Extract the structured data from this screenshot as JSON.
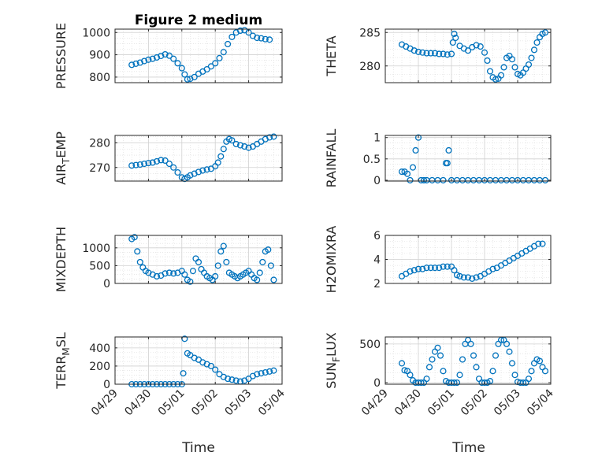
{
  "figure": {
    "title": "Figure 2 medium",
    "xlabel": "Time",
    "marker_color": "#0072bd"
  },
  "chart_data": [
    {
      "type": "scatter",
      "title": "Figure 2 medium",
      "ylabel": "PRESSURE",
      "ylabel_base": "PRESSURE",
      "ylabel_sub": "",
      "ylabel_tail": "",
      "xlabel": "",
      "xlim": [
        "04/29",
        "05/04"
      ],
      "ylim": [
        775,
        1015
      ],
      "yticks": [
        800,
        900,
        1000
      ],
      "xticks": [
        "04/29",
        "04/30",
        "05/01",
        "05/02",
        "05/03",
        "05/04"
      ],
      "grid": true,
      "series": [
        {
          "x": [
            "04/29 12:00",
            "04/29 15:00",
            "04/29 18:00",
            "04/29 21:00",
            "04/30 00:00",
            "04/30 03:00",
            "04/30 06:00",
            "04/30 09:00",
            "04/30 12:00",
            "04/30 15:00",
            "04/30 18:00",
            "04/30 21:00",
            "05/01 00:00",
            "05/01 02:00",
            "05/01 04:00",
            "05/01 06:00",
            "05/01 09:00",
            "05/01 12:00",
            "05/01 15:00",
            "05/01 18:00",
            "05/01 21:00",
            "05/02 00:00",
            "05/02 03:00",
            "05/02 06:00",
            "05/02 09:00",
            "05/02 12:00",
            "05/02 15:00",
            "05/02 18:00",
            "05/02 21:00",
            "05/03 00:00",
            "05/03 03:00",
            "05/03 06:00",
            "05/03 09:00",
            "05/03 12:00",
            "05/03 15:00"
          ],
          "y": [
            855,
            860,
            865,
            872,
            878,
            882,
            888,
            895,
            902,
            896,
            882,
            862,
            840,
            812,
            790,
            792,
            800,
            815,
            825,
            835,
            848,
            862,
            885,
            912,
            948,
            980,
            1000,
            1008,
            1010,
            1000,
            985,
            976,
            974,
            970,
            968
          ]
        }
      ]
    },
    {
      "type": "scatter",
      "ylabel": "THETA",
      "ylabel_base": "THETA",
      "ylabel_sub": "",
      "ylabel_tail": "",
      "xlim": [
        "04/29",
        "05/04"
      ],
      "ylim": [
        277.5,
        285.5
      ],
      "yticks": [
        280,
        285
      ],
      "grid": true,
      "series": [
        {
          "x": [
            "04/29 12:00",
            "04/29 15:00",
            "04/29 18:00",
            "04/29 21:00",
            "04/30 00:00",
            "04/30 03:00",
            "04/30 06:00",
            "04/30 09:00",
            "04/30 12:00",
            "04/30 15:00",
            "04/30 18:00",
            "04/30 21:00",
            "05/01 00:00",
            "05/01 01:00",
            "05/01 02:00",
            "05/01 03:00",
            "05/01 06:00",
            "05/01 09:00",
            "05/01 12:00",
            "05/01 15:00",
            "05/01 18:00",
            "05/01 21:00",
            "05/02 00:00",
            "05/02 02:00",
            "05/02 04:00",
            "05/02 06:00",
            "05/02 08:00",
            "05/02 10:00",
            "05/02 12:00",
            "05/02 14:00",
            "05/02 16:00",
            "05/02 18:00",
            "05/02 20:00",
            "05/02 22:00",
            "05/03 00:00",
            "05/03 02:00",
            "05/03 04:00",
            "05/03 06:00",
            "05/03 08:00",
            "05/03 10:00",
            "05/03 12:00",
            "05/03 14:00",
            "05/03 16:00",
            "05/03 18:00",
            "05/03 20:00"
          ],
          "y": [
            283.2,
            282.9,
            282.6,
            282.3,
            282.1,
            282.0,
            281.9,
            281.9,
            281.9,
            281.8,
            281.8,
            281.7,
            281.8,
            283.5,
            284.8,
            284.2,
            283.0,
            282.6,
            282.3,
            282.8,
            283.1,
            282.9,
            282.0,
            280.8,
            279.2,
            278.3,
            278.0,
            278.1,
            278.6,
            279.8,
            281.2,
            281.5,
            281.0,
            279.8,
            278.8,
            278.6,
            279.0,
            279.6,
            280.2,
            281.2,
            282.4,
            283.5,
            284.3,
            284.8,
            285.0
          ]
        }
      ]
    },
    {
      "type": "scatter",
      "ylabel": "AIR_TEMP",
      "ylabel_base": "AIR",
      "ylabel_sub": "T",
      "ylabel_tail": "EMP",
      "xlim": [
        "04/29",
        "05/04"
      ],
      "ylim": [
        264.5,
        283
      ],
      "yticks": [
        270,
        280
      ],
      "grid": true,
      "series": [
        {
          "x": [
            "04/29 12:00",
            "04/29 15:00",
            "04/29 18:00",
            "04/29 21:00",
            "04/30 00:00",
            "04/30 03:00",
            "04/30 06:00",
            "04/30 09:00",
            "04/30 12:00",
            "04/30 15:00",
            "04/30 18:00",
            "04/30 21:00",
            "05/01 00:00",
            "05/01 02:00",
            "05/01 04:00",
            "05/01 06:00",
            "05/01 09:00",
            "05/01 12:00",
            "05/01 15:00",
            "05/01 18:00",
            "05/01 21:00",
            "05/02 00:00",
            "05/02 02:00",
            "05/02 04:00",
            "05/02 06:00",
            "05/02 08:00",
            "05/02 10:00",
            "05/02 12:00",
            "05/02 15:00",
            "05/02 18:00",
            "05/02 21:00",
            "05/03 00:00",
            "05/03 03:00",
            "05/03 06:00",
            "05/03 09:00",
            "05/03 12:00",
            "05/03 15:00",
            "05/03 18:00"
          ],
          "y": [
            270.8,
            271.0,
            271.2,
            271.5,
            271.8,
            272.0,
            272.5,
            273.0,
            272.8,
            271.5,
            270.0,
            268.0,
            266.0,
            265.4,
            266.0,
            266.8,
            267.5,
            268.2,
            268.8,
            269.2,
            269.5,
            270.5,
            272.0,
            274.5,
            277.5,
            280.5,
            281.5,
            281.0,
            279.5,
            279.0,
            278.5,
            278.0,
            278.5,
            279.5,
            280.5,
            281.5,
            282.2,
            282.5
          ]
        }
      ]
    },
    {
      "type": "scatter",
      "ylabel": "RAINFALL",
      "ylabel_base": "RAINFALL",
      "ylabel_sub": "",
      "ylabel_tail": "",
      "xlim": [
        "04/29",
        "05/04"
      ],
      "ylim": [
        -0.02,
        1.05
      ],
      "yticks": [
        0,
        0.5,
        1
      ],
      "grid": true,
      "series": [
        {
          "x": [
            "04/29 12:00",
            "04/29 14:00",
            "04/29 16:00",
            "04/29 18:00",
            "04/29 20:00",
            "04/29 22:00",
            "04/30 00:00",
            "04/30 02:00",
            "04/30 04:00",
            "04/30 06:00",
            "04/30 10:00",
            "04/30 14:00",
            "04/30 18:00",
            "04/30 20:00",
            "04/30 21:00",
            "04/30 22:00",
            "05/01 00:00",
            "05/01 04:00",
            "05/01 08:00",
            "05/01 12:00",
            "05/01 16:00",
            "05/01 20:00",
            "05/02 00:00",
            "05/02 04:00",
            "05/02 08:00",
            "05/02 12:00",
            "05/02 16:00",
            "05/02 20:00",
            "05/03 00:00",
            "05/03 04:00",
            "05/03 08:00",
            "05/03 12:00",
            "05/03 16:00",
            "05/03 20:00"
          ],
          "y": [
            0.2,
            0.2,
            0.15,
            0.0,
            0.3,
            0.7,
            1.0,
            0.0,
            0.0,
            0.0,
            0.0,
            0.0,
            0.0,
            0.4,
            0.4,
            0.7,
            0.0,
            0.0,
            0.0,
            0.0,
            0.0,
            0.0,
            0.0,
            0.0,
            0.0,
            0.0,
            0.0,
            0.0,
            0.0,
            0.0,
            0.0,
            0.0,
            0.0,
            0.0
          ]
        }
      ]
    },
    {
      "type": "scatter",
      "ylabel": "MIXDEPTH",
      "ylabel_base": "MIXDEPTH",
      "ylabel_sub": "",
      "ylabel_tail": "",
      "xlim": [
        "04/29",
        "05/04"
      ],
      "ylim": [
        0,
        1350
      ],
      "yticks": [
        0,
        500,
        1000
      ],
      "grid": true,
      "series": [
        {
          "x": [
            "04/29 12:00",
            "04/29 14:00",
            "04/29 16:00",
            "04/29 18:00",
            "04/29 20:00",
            "04/29 22:00",
            "04/30 00:00",
            "04/30 03:00",
            "04/30 06:00",
            "04/30 09:00",
            "04/30 12:00",
            "04/30 15:00",
            "04/30 18:00",
            "04/30 21:00",
            "05/01 00:00",
            "05/01 02:00",
            "05/01 04:00",
            "05/01 06:00",
            "05/01 08:00",
            "05/01 10:00",
            "05/01 12:00",
            "05/01 14:00",
            "05/01 16:00",
            "05/01 18:00",
            "05/01 20:00",
            "05/01 22:00",
            "05/02 00:00",
            "05/02 02:00",
            "05/02 04:00",
            "05/02 06:00",
            "05/02 08:00",
            "05/02 10:00",
            "05/02 12:00",
            "05/02 14:00",
            "05/02 16:00",
            "05/02 18:00",
            "05/02 20:00",
            "05/02 22:00",
            "05/03 00:00",
            "05/03 02:00",
            "05/03 04:00",
            "05/03 06:00",
            "05/03 08:00",
            "05/03 10:00",
            "05/03 12:00",
            "05/03 14:00",
            "05/03 16:00",
            "05/03 18:00"
          ],
          "y": [
            1250,
            1300,
            900,
            600,
            450,
            350,
            300,
            250,
            200,
            220,
            280,
            300,
            280,
            300,
            350,
            250,
            100,
            50,
            350,
            700,
            600,
            400,
            300,
            200,
            150,
            100,
            200,
            500,
            900,
            1050,
            600,
            300,
            250,
            200,
            150,
            200,
            250,
            300,
            350,
            250,
            150,
            100,
            300,
            600,
            900,
            950,
            500,
            100
          ]
        }
      ]
    },
    {
      "type": "scatter",
      "ylabel": "H2OMIXRA",
      "ylabel_base": "H2OMIXRA",
      "ylabel_sub": "",
      "ylabel_tail": "",
      "xlim": [
        "04/29",
        "05/04"
      ],
      "ylim": [
        2,
        6
      ],
      "yticks": [
        2,
        4,
        6
      ],
      "grid": true,
      "series": [
        {
          "x": [
            "04/29 12:00",
            "04/29 15:00",
            "04/29 18:00",
            "04/29 21:00",
            "04/30 00:00",
            "04/30 03:00",
            "04/30 06:00",
            "04/30 09:00",
            "04/30 12:00",
            "04/30 15:00",
            "04/30 18:00",
            "04/30 21:00",
            "05/01 00:00",
            "05/01 02:00",
            "05/01 04:00",
            "05/01 06:00",
            "05/01 09:00",
            "05/01 12:00",
            "05/01 15:00",
            "05/01 18:00",
            "05/01 21:00",
            "05/02 00:00",
            "05/02 03:00",
            "05/02 06:00",
            "05/02 09:00",
            "05/02 12:00",
            "05/02 15:00",
            "05/02 18:00",
            "05/02 21:00",
            "05/03 00:00",
            "05/03 03:00",
            "05/03 06:00",
            "05/03 09:00",
            "05/03 12:00",
            "05/03 15:00",
            "05/03 18:00"
          ],
          "y": [
            2.6,
            2.8,
            3.0,
            3.1,
            3.2,
            3.2,
            3.3,
            3.3,
            3.3,
            3.3,
            3.4,
            3.4,
            3.4,
            3.1,
            2.7,
            2.6,
            2.5,
            2.5,
            2.4,
            2.5,
            2.6,
            2.8,
            3.0,
            3.2,
            3.3,
            3.5,
            3.7,
            3.9,
            4.1,
            4.3,
            4.5,
            4.7,
            4.9,
            5.1,
            5.3,
            5.3
          ]
        }
      ]
    },
    {
      "type": "scatter",
      "ylabel": "TERR_MSL",
      "ylabel_base": "TERR",
      "ylabel_sub": "M",
      "ylabel_tail": "SL",
      "xlim": [
        "04/29",
        "05/04"
      ],
      "ylim": [
        0,
        520
      ],
      "yticks": [
        0,
        200,
        400
      ],
      "xticks": [
        "04/29",
        "04/30",
        "05/01",
        "05/02",
        "05/03",
        "05/04"
      ],
      "xlabel": "Time",
      "grid": true,
      "series": [
        {
          "x": [
            "04/29 12:00",
            "04/29 15:00",
            "04/29 18:00",
            "04/29 21:00",
            "04/30 00:00",
            "04/30 03:00",
            "04/30 06:00",
            "04/30 09:00",
            "04/30 12:00",
            "04/30 15:00",
            "04/30 18:00",
            "04/30 21:00",
            "05/01 00:00",
            "05/01 01:00",
            "05/01 02:00",
            "05/01 04:00",
            "05/01 06:00",
            "05/01 09:00",
            "05/01 12:00",
            "05/01 15:00",
            "05/01 18:00",
            "05/01 21:00",
            "05/02 00:00",
            "05/02 03:00",
            "05/02 06:00",
            "05/02 09:00",
            "05/02 12:00",
            "05/02 15:00",
            "05/02 18:00",
            "05/02 21:00",
            "05/03 00:00",
            "05/03 03:00",
            "05/03 06:00",
            "05/03 09:00",
            "05/03 12:00",
            "05/03 15:00",
            "05/03 18:00"
          ],
          "y": [
            0,
            0,
            0,
            0,
            0,
            0,
            0,
            0,
            0,
            0,
            0,
            0,
            0,
            120,
            500,
            340,
            320,
            290,
            270,
            240,
            220,
            200,
            160,
            110,
            80,
            60,
            50,
            40,
            30,
            40,
            60,
            90,
            110,
            120,
            130,
            140,
            150
          ]
        }
      ]
    },
    {
      "type": "scatter",
      "ylabel": "SUN_FLUX",
      "ylabel_base": "SUN",
      "ylabel_sub": "F",
      "ylabel_tail": "LUX",
      "xlim": [
        "04/29",
        "05/04"
      ],
      "ylim": [
        -20,
        590
      ],
      "yticks": [
        0,
        500
      ],
      "xticks": [
        "04/29",
        "04/30",
        "05/01",
        "05/02",
        "05/03",
        "05/04"
      ],
      "xlabel": "Time",
      "grid": true,
      "series": [
        {
          "x": [
            "04/29 12:00",
            "04/29 14:00",
            "04/29 16:00",
            "04/29 18:00",
            "04/29 20:00",
            "04/29 22:00",
            "04/30 00:00",
            "04/30 02:00",
            "04/30 04:00",
            "04/30 06:00",
            "04/30 08:00",
            "04/30 10:00",
            "04/30 12:00",
            "04/30 14:00",
            "04/30 16:00",
            "04/30 18:00",
            "04/30 20:00",
            "04/30 22:00",
            "05/01 00:00",
            "05/01 02:00",
            "05/01 04:00",
            "05/01 06:00",
            "05/01 08:00",
            "05/01 10:00",
            "05/01 12:00",
            "05/01 14:00",
            "05/01 16:00",
            "05/01 18:00",
            "05/01 20:00",
            "05/01 22:00",
            "05/02 00:00",
            "05/02 02:00",
            "05/02 04:00",
            "05/02 06:00",
            "05/02 08:00",
            "05/02 10:00",
            "05/02 12:00",
            "05/02 14:00",
            "05/02 16:00",
            "05/02 18:00",
            "05/02 20:00",
            "05/02 22:00",
            "05/03 00:00",
            "05/03 02:00",
            "05/03 04:00",
            "05/03 06:00",
            "05/03 08:00",
            "05/03 10:00",
            "05/03 12:00",
            "05/03 14:00",
            "05/03 16:00",
            "05/03 18:00",
            "05/03 20:00"
          ],
          "y": [
            250,
            160,
            150,
            100,
            30,
            0,
            0,
            0,
            0,
            50,
            200,
            300,
            400,
            450,
            350,
            150,
            20,
            0,
            0,
            0,
            0,
            100,
            300,
            500,
            550,
            500,
            350,
            200,
            50,
            0,
            0,
            0,
            20,
            150,
            350,
            500,
            550,
            550,
            500,
            400,
            250,
            100,
            10,
            0,
            0,
            0,
            50,
            150,
            250,
            300,
            280,
            200,
            150
          ]
        }
      ]
    }
  ]
}
